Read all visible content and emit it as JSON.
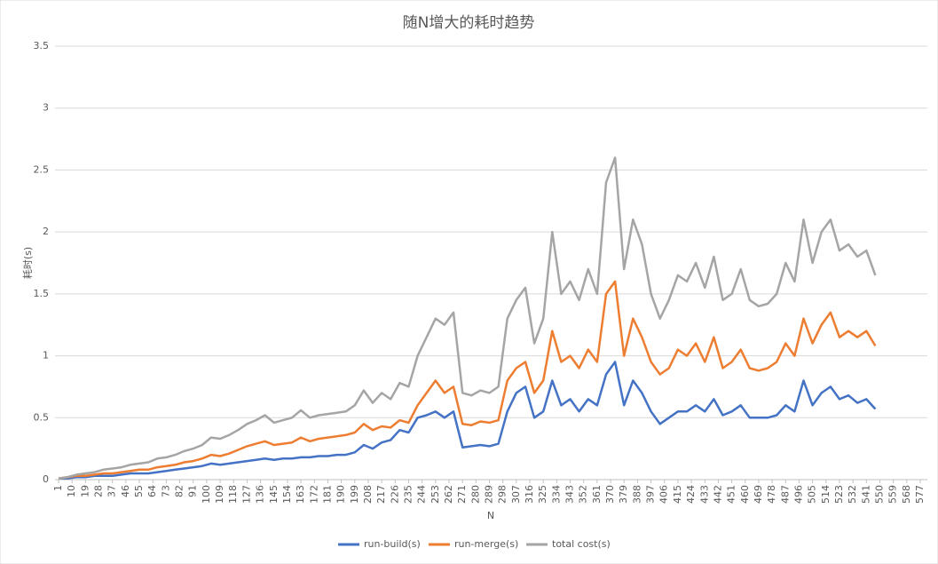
{
  "chart_data": {
    "type": "line",
    "title": "随N增大的耗时趋势",
    "x_label": "N",
    "y_label": "耗时(s)",
    "x": [
      1,
      7,
      13,
      19,
      25,
      31,
      37,
      43,
      49,
      55,
      61,
      67,
      73,
      79,
      85,
      91,
      97,
      103,
      109,
      115,
      121,
      127,
      133,
      139,
      145,
      151,
      157,
      163,
      169,
      175,
      181,
      187,
      193,
      199,
      205,
      211,
      217,
      223,
      229,
      235,
      241,
      247,
      253,
      259,
      265,
      271,
      277,
      283,
      289,
      295,
      301,
      307,
      313,
      319,
      325,
      331,
      337,
      343,
      349,
      355,
      361,
      367,
      373,
      379,
      385,
      391,
      397,
      403,
      409,
      415,
      421,
      427,
      433,
      439,
      445,
      451,
      457,
      463,
      469,
      475,
      481,
      487,
      493,
      499,
      505,
      511,
      517,
      523,
      529,
      535,
      541,
      547
    ],
    "series": [
      {
        "name": "run-build(s)",
        "color": "#4472c4",
        "values": [
          0.01,
          0.01,
          0.02,
          0.02,
          0.03,
          0.03,
          0.03,
          0.04,
          0.05,
          0.05,
          0.05,
          0.06,
          0.07,
          0.08,
          0.09,
          0.1,
          0.11,
          0.13,
          0.12,
          0.13,
          0.14,
          0.15,
          0.16,
          0.17,
          0.16,
          0.17,
          0.17,
          0.18,
          0.18,
          0.19,
          0.19,
          0.2,
          0.2,
          0.22,
          0.28,
          0.25,
          0.3,
          0.32,
          0.4,
          0.38,
          0.5,
          0.52,
          0.55,
          0.5,
          0.55,
          0.26,
          0.27,
          0.28,
          0.27,
          0.29,
          0.55,
          0.7,
          0.75,
          0.5,
          0.55,
          0.8,
          0.6,
          0.65,
          0.55,
          0.65,
          0.6,
          0.85,
          0.95,
          0.6,
          0.8,
          0.7,
          0.55,
          0.45,
          0.5,
          0.55,
          0.55,
          0.6,
          0.55,
          0.65,
          0.52,
          0.55,
          0.6,
          0.5,
          0.5,
          0.5,
          0.52,
          0.6,
          0.55,
          0.8,
          0.6,
          0.7,
          0.75,
          0.65,
          0.68,
          0.62,
          0.65,
          0.57
        ]
      },
      {
        "name": "run-merge(s)",
        "color": "#ed7d31",
        "values": [
          0.01,
          0.02,
          0.03,
          0.03,
          0.04,
          0.05,
          0.05,
          0.06,
          0.07,
          0.08,
          0.08,
          0.1,
          0.11,
          0.12,
          0.14,
          0.15,
          0.17,
          0.2,
          0.19,
          0.21,
          0.24,
          0.27,
          0.29,
          0.31,
          0.28,
          0.29,
          0.3,
          0.34,
          0.31,
          0.33,
          0.34,
          0.35,
          0.36,
          0.38,
          0.45,
          0.4,
          0.43,
          0.42,
          0.48,
          0.46,
          0.6,
          0.7,
          0.8,
          0.7,
          0.75,
          0.45,
          0.44,
          0.47,
          0.46,
          0.48,
          0.8,
          0.9,
          0.95,
          0.7,
          0.8,
          1.2,
          0.95,
          1.0,
          0.9,
          1.05,
          0.95,
          1.5,
          1.6,
          1.0,
          1.3,
          1.15,
          0.95,
          0.85,
          0.9,
          1.05,
          1.0,
          1.1,
          0.95,
          1.15,
          0.9,
          0.95,
          1.05,
          0.9,
          0.88,
          0.9,
          0.95,
          1.1,
          1.0,
          1.3,
          1.1,
          1.25,
          1.35,
          1.15,
          1.2,
          1.15,
          1.2,
          1.08
        ]
      },
      {
        "name": "total cost(s)",
        "color": "#a5a5a5",
        "values": [
          0.01,
          0.02,
          0.04,
          0.05,
          0.06,
          0.08,
          0.09,
          0.1,
          0.12,
          0.13,
          0.14,
          0.17,
          0.18,
          0.2,
          0.23,
          0.25,
          0.28,
          0.34,
          0.33,
          0.36,
          0.4,
          0.45,
          0.48,
          0.52,
          0.46,
          0.48,
          0.5,
          0.56,
          0.5,
          0.52,
          0.53,
          0.54,
          0.55,
          0.6,
          0.72,
          0.62,
          0.7,
          0.65,
          0.78,
          0.75,
          1.0,
          1.15,
          1.3,
          1.25,
          1.35,
          0.7,
          0.68,
          0.72,
          0.7,
          0.75,
          1.3,
          1.45,
          1.55,
          1.1,
          1.3,
          2.0,
          1.5,
          1.6,
          1.45,
          1.7,
          1.5,
          2.4,
          2.6,
          1.7,
          2.1,
          1.9,
          1.5,
          1.3,
          1.45,
          1.65,
          1.6,
          1.75,
          1.55,
          1.8,
          1.45,
          1.5,
          1.7,
          1.45,
          1.4,
          1.42,
          1.5,
          1.75,
          1.6,
          2.1,
          1.75,
          2.0,
          2.1,
          1.85,
          1.9,
          1.8,
          1.85,
          1.65
        ]
      }
    ],
    "xlim": [
      1,
      577
    ],
    "xticks": [
      1,
      10,
      19,
      28,
      37,
      46,
      55,
      64,
      73,
      82,
      91,
      100,
      109,
      118,
      127,
      136,
      145,
      154,
      163,
      172,
      181,
      190,
      199,
      208,
      217,
      226,
      235,
      244,
      253,
      262,
      271,
      280,
      289,
      298,
      307,
      316,
      325,
      334,
      343,
      352,
      361,
      370,
      379,
      388,
      397,
      406,
      415,
      424,
      433,
      442,
      451,
      460,
      469,
      478,
      487,
      496,
      505,
      514,
      523,
      532,
      541,
      550,
      559,
      568,
      577
    ],
    "ylim": [
      0,
      3.5
    ],
    "yticks": [
      0,
      0.5,
      1,
      1.5,
      2,
      2.5,
      3,
      3.5
    ],
    "grid": true,
    "legend": "bottom"
  }
}
